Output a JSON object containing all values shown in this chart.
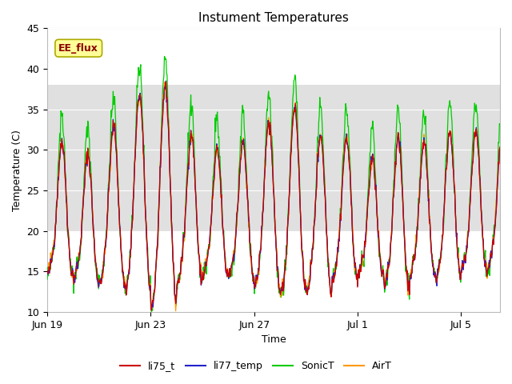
{
  "title": "Instument Temperatures",
  "xlabel": "Time",
  "ylabel": "Temperature (C)",
  "ylim": [
    10,
    45
  ],
  "yticks": [
    10,
    15,
    20,
    25,
    30,
    35,
    40,
    45
  ],
  "x_tick_labels": [
    "Jun 19",
    "Jun 23",
    "Jun 27",
    "Jul 1",
    "Jul 5"
  ],
  "x_tick_positions": [
    0,
    4,
    8,
    12,
    16
  ],
  "n_days": 17.5,
  "colors": {
    "li75_t": "#cc0000",
    "li77_temp": "#2222cc",
    "SonicT": "#00cc00",
    "AirT": "#ff9900"
  },
  "legend_labels": [
    "li75_t",
    "li77_temp",
    "SonicT",
    "AirT"
  ],
  "annotation_text": "EE_flux",
  "annotation_color": "#8b0000",
  "annotation_bg": "#ffff99",
  "annotation_edge": "#aaaa00",
  "background_band_ymin": 20,
  "background_band_ymax": 38,
  "background_band_color": "#e0e0e0",
  "title_fontsize": 11,
  "axis_label_fontsize": 9,
  "tick_fontsize": 9,
  "line_width": 0.9,
  "figsize": [
    6.4,
    4.8
  ],
  "dpi": 100
}
